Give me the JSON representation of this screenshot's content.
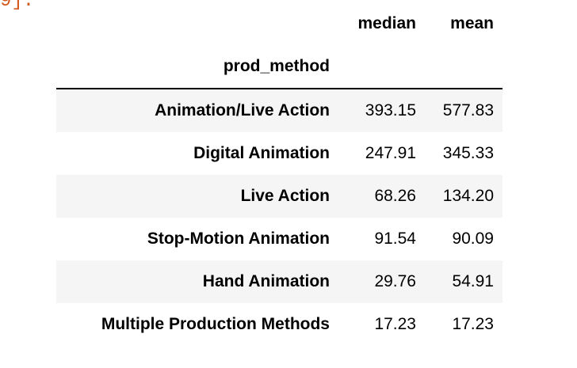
{
  "prompt_fragment": "9]:",
  "table": {
    "columns": [
      "median",
      "mean"
    ],
    "index_name": "prod_method",
    "rows": [
      {
        "label": "Animation/Live Action",
        "median": "393.15",
        "mean": "577.83"
      },
      {
        "label": "Digital Animation",
        "median": "247.91",
        "mean": "345.33"
      },
      {
        "label": "Live Action",
        "median": "68.26",
        "mean": "134.20"
      },
      {
        "label": "Stop-Motion Animation",
        "median": "91.54",
        "mean": "90.09"
      },
      {
        "label": "Hand Animation",
        "median": "29.76",
        "mean": "54.91"
      },
      {
        "label": "Multiple Production Methods",
        "median": "17.23",
        "mean": "17.23"
      }
    ]
  },
  "colors": {
    "prompt": "#d2591f",
    "stripe": "#f5f5f5",
    "text": "#000000"
  }
}
